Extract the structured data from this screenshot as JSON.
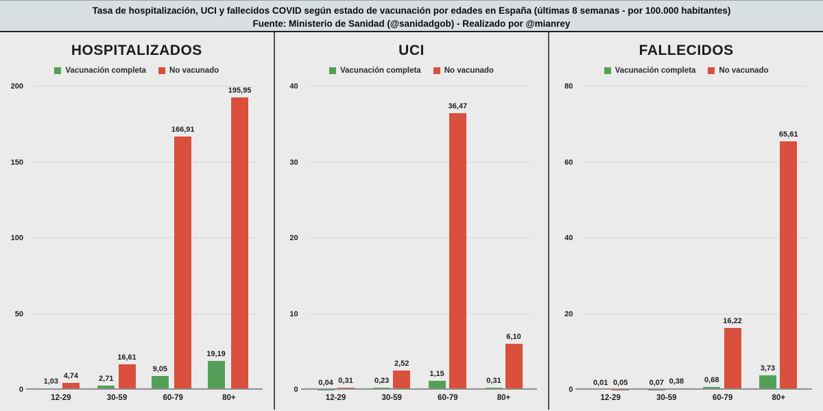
{
  "header": {
    "line1": "Tasa de hospitalización, UCI y fallecidos COVID según estado de vacunación por edades en España (últimas 8 semanas - por 100.000 habitantes)",
    "line2": "Fuente: Ministerio de Sanidad (@sanidadgob) - Realizado por @mianrey"
  },
  "colors": {
    "vaccinated_green": "#53a158",
    "unvaccinated_red": "#d9503c",
    "header_background": "#d7dfe3",
    "panel_background": "#ebebeb"
  },
  "chart_data": [
    {
      "type": "bar",
      "title": "HOSPITALIZADOS",
      "categories": [
        "12-29",
        "30-59",
        "60-79",
        "80+"
      ],
      "series": [
        {
          "name": "Vacunación completa",
          "color": "#53a158",
          "values": [
            1.03,
            2.71,
            9.05,
            19.19
          ]
        },
        {
          "name": "No vacunado",
          "color": "#d9503c",
          "values": [
            4.74,
            16.61,
            166.91,
            195.95
          ]
        }
      ],
      "value_labels": [
        [
          "1,03",
          "2,71",
          "9,05",
          "19,19"
        ],
        [
          "4,74",
          "16,61",
          "166,91",
          "195,95"
        ]
      ],
      "ylim": [
        0,
        200
      ],
      "yticks": [
        0,
        50,
        100,
        150,
        200
      ],
      "grid": true,
      "legend_position": "top"
    },
    {
      "type": "bar",
      "title": "UCI",
      "categories": [
        "12-29",
        "30-59",
        "60-79",
        "80+"
      ],
      "series": [
        {
          "name": "Vacunación completa",
          "color": "#53a158",
          "values": [
            0.04,
            0.23,
            1.15,
            0.31
          ]
        },
        {
          "name": "No vacunado",
          "color": "#d9503c",
          "values": [
            0.31,
            2.52,
            36.47,
            6.1
          ]
        }
      ],
      "value_labels": [
        [
          "0,04",
          "0,23",
          "1,15",
          "0,31"
        ],
        [
          "0,31",
          "2,52",
          "36,47",
          "6,10"
        ]
      ],
      "ylim": [
        0,
        40
      ],
      "yticks": [
        0,
        10,
        20,
        30,
        40
      ],
      "grid": true,
      "legend_position": "top"
    },
    {
      "type": "bar",
      "title": "FALLECIDOS",
      "categories": [
        "12-29",
        "30-59",
        "60-79",
        "80+"
      ],
      "series": [
        {
          "name": "Vacunación completa",
          "color": "#53a158",
          "values": [
            0.01,
            0.07,
            0.68,
            3.73
          ]
        },
        {
          "name": "No vacunado",
          "color": "#d9503c",
          "values": [
            0.05,
            0.38,
            16.22,
            65.61
          ]
        }
      ],
      "value_labels": [
        [
          "0,01",
          "0,07",
          "0,68",
          "3,73"
        ],
        [
          "0,05",
          "0,38",
          "16,22",
          "65,61"
        ]
      ],
      "ylim": [
        0,
        80
      ],
      "yticks": [
        0,
        20,
        40,
        60,
        80
      ],
      "grid": true,
      "legend_position": "top"
    }
  ]
}
